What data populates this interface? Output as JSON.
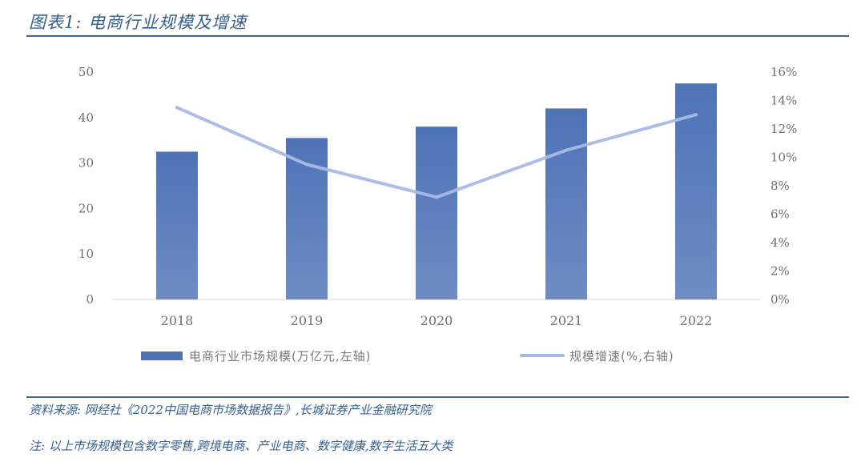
{
  "header": {
    "title": "图表1:  电商行业规模及增速"
  },
  "footer": {
    "source": "资料来源: 网经社《2022中国电商市场数据报告》,长城证券产业金融研究院",
    "note": "注:  以上市场规模包含数字零售,跨境电商、产业电商、数字健康,数字生活五大类"
  },
  "colors": {
    "bar_top": "#4e73b6",
    "bar_bottom": "#6f8cc4",
    "line": "#a9b9e6",
    "axis": "#d9d9d9",
    "text": "#6f6f6f"
  },
  "chart_data": {
    "type": "bar",
    "categories": [
      "2018",
      "2019",
      "2020",
      "2021",
      "2022"
    ],
    "series": [
      {
        "name": "电商行业市场规模(万亿元,左轴)",
        "type": "bar",
        "axis": "left",
        "values": [
          32.5,
          35.5,
          38,
          42,
          47.5
        ]
      },
      {
        "name": "规模增速(%,右轴)",
        "type": "line",
        "axis": "right",
        "values": [
          13.5,
          9.5,
          7.2,
          10.5,
          13.0
        ]
      }
    ],
    "y_left": {
      "min": 0,
      "max": 50,
      "ticks": [
        0,
        10,
        20,
        30,
        40,
        50
      ],
      "tick_labels": [
        "0",
        "10",
        "20",
        "30",
        "40",
        "50"
      ]
    },
    "y_right": {
      "min": 0,
      "max": 16,
      "ticks": [
        0,
        2,
        4,
        6,
        8,
        10,
        12,
        14,
        16
      ],
      "tick_labels": [
        "0%",
        "2%",
        "4%",
        "6%",
        "8%",
        "10%",
        "12%",
        "14%",
        "16%"
      ]
    },
    "grid": false,
    "legend_position": "bottom-center"
  }
}
